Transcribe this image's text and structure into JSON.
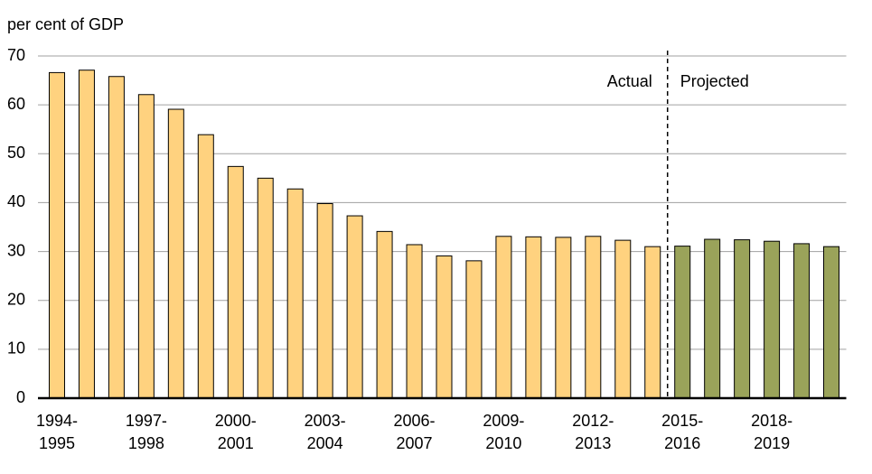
{
  "chart_data": {
    "type": "bar",
    "y_label": "per cent of GDP",
    "categories": [
      [
        "1994-",
        "1995"
      ],
      null,
      null,
      [
        "1997-",
        "1998"
      ],
      null,
      null,
      [
        "2000-",
        "2001"
      ],
      null,
      null,
      [
        "2003-",
        "2004"
      ],
      null,
      null,
      [
        "2006-",
        "2007"
      ],
      null,
      null,
      [
        "2009-",
        "2010"
      ],
      null,
      null,
      [
        "2012-",
        "2013"
      ],
      null,
      null,
      [
        "2015-",
        "2016"
      ],
      null,
      null,
      [
        "2018-",
        "2019"
      ],
      null,
      null
    ],
    "series": [
      {
        "name": "Actual",
        "color": "#ffd27f",
        "values": [
          66.6,
          67.1,
          65.8,
          62.1,
          59.1,
          53.9,
          47.4,
          45.0,
          42.8,
          39.8,
          37.3,
          34.1,
          31.4,
          29.1,
          28.1,
          33.1,
          33.0,
          32.9,
          33.1,
          32.3,
          31.0,
          null,
          null,
          null,
          null,
          null,
          null
        ]
      },
      {
        "name": "Projected",
        "color": "#9aa35a",
        "values": [
          null,
          null,
          null,
          null,
          null,
          null,
          null,
          null,
          null,
          null,
          null,
          null,
          null,
          null,
          null,
          null,
          null,
          null,
          null,
          null,
          null,
          31.1,
          32.5,
          32.4,
          32.1,
          31.6,
          31.0
        ]
      }
    ],
    "ylim": [
      0,
      70
    ],
    "yticks": [
      0,
      10,
      20,
      30,
      40,
      50,
      60,
      70
    ],
    "grid": true
  }
}
